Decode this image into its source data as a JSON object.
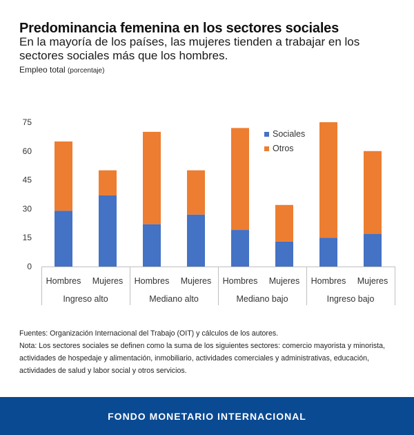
{
  "header": {
    "title": "Predominancia femenina en los sectores sociales",
    "subtitle": "En la mayoría de los países, las mujeres tienden a trabajar en los sectores sociales más que los hombres.",
    "unit_main": "Empleo total",
    "unit_small": "(porcentaje)"
  },
  "chart_data": {
    "type": "bar",
    "stacked": true,
    "groups": [
      "Ingreso alto",
      "Mediano alto",
      "Mediano bajo",
      "Ingreso bajo"
    ],
    "categories": [
      "Hombres",
      "Mujeres",
      "Hombres",
      "Mujeres",
      "Hombres",
      "Mujeres",
      "Hombres",
      "Mujeres"
    ],
    "series": [
      {
        "name": "Sociales",
        "color": "#4472c4",
        "values": [
          29,
          37,
          22,
          27,
          19,
          13,
          15,
          17
        ]
      },
      {
        "name": "Otros",
        "color": "#ed7d31",
        "values": [
          36,
          13,
          48,
          23,
          53,
          19,
          60,
          43
        ]
      }
    ],
    "yticks": [
      "0",
      "15",
      "30",
      "45",
      "60",
      "75"
    ],
    "ylim": [
      0,
      75
    ],
    "legend_position": "top-right",
    "grid": false
  },
  "notes": {
    "source": "Fuentes: Organización Internacional del Trabajo (OIT) y cálculos de los autores.",
    "note": "Nota: Los sectores sociales se definen como la suma de los siguientes sectores: comercio mayorista y minorista, actividades de hospedaje y alimentación, inmobiliario, actividades comerciales y administrativas, educación, actividades de salud y labor social y otros servicios."
  },
  "footer": {
    "label": "FONDO MONETARIO INTERNACIONAL"
  }
}
